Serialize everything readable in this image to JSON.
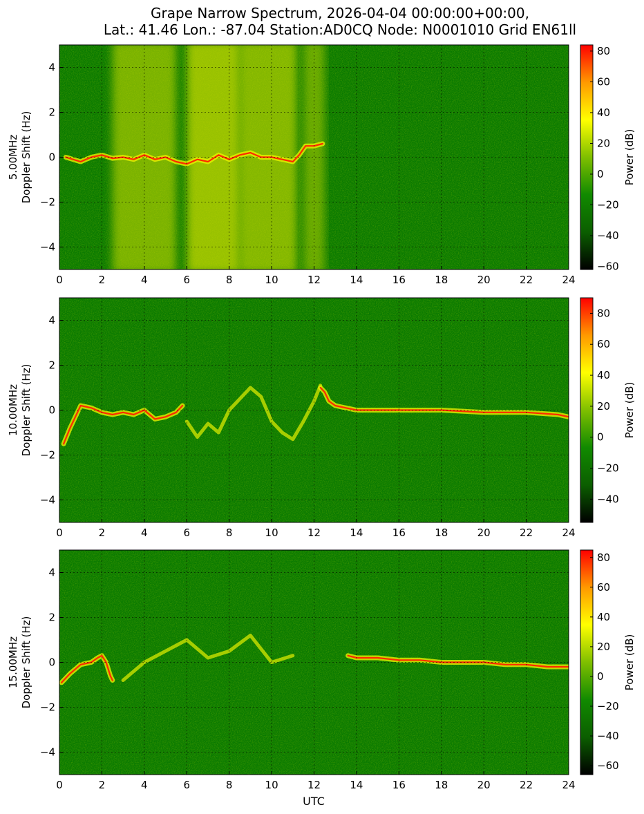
{
  "figure": {
    "title_line1": "Grape Narrow Spectrum, 2026-04-04 00:00:00+00:00,",
    "title_line2": "Lat.: 41.46 Lon.: -87.04 Station:AD0CQ Node: N0001010 Grid EN61ll",
    "xlabel": "UTC"
  },
  "colors": {
    "background_green": "#0a7a00",
    "grid": "#000000",
    "colormap": [
      "#000000",
      "#0b5e00",
      "#118a00",
      "#7fbf00",
      "#ffff00",
      "#ff9900",
      "#ff0000"
    ]
  },
  "chart_data": [
    {
      "type": "heatmap",
      "ylabel_top": "5.00MHz",
      "ylabel_bottom": "Doppler Shift (Hz)",
      "xlabel": "",
      "xlim": [
        0,
        24
      ],
      "ylim": [
        -5,
        5
      ],
      "xticks": [
        0,
        2,
        4,
        6,
        8,
        10,
        12,
        14,
        16,
        18,
        20,
        22,
        24
      ],
      "yticks": [
        -4,
        -2,
        0,
        2,
        4
      ],
      "grid": true,
      "colorbar": {
        "label": "Power (dB)",
        "range": [
          -62,
          84
        ],
        "ticks": [
          -60,
          -40,
          -20,
          0,
          20,
          40,
          60,
          80
        ]
      },
      "trace": {
        "x": [
          0.3,
          1.0,
          1.5,
          2.0,
          2.5,
          3.0,
          3.5,
          4.0,
          4.5,
          5.0,
          5.5,
          6.0,
          6.5,
          7.0,
          7.5,
          8.0,
          8.5,
          9.0,
          9.5,
          10.0,
          10.5,
          11.0,
          11.3,
          11.6,
          12.0,
          12.4
        ],
        "y": [
          0.0,
          -0.2,
          0.0,
          0.1,
          -0.05,
          0.0,
          -0.1,
          0.1,
          -0.1,
          0.0,
          -0.2,
          -0.3,
          -0.1,
          -0.2,
          0.1,
          -0.1,
          0.1,
          0.2,
          0.0,
          0.0,
          -0.1,
          -0.2,
          0.1,
          0.5,
          0.5,
          0.6
        ]
      },
      "bright_regions": [
        {
          "x_range": [
            2.5,
            5.5
          ],
          "level": 0.55
        },
        {
          "x_range": [
            6.0,
            8.5
          ],
          "level": 0.7
        },
        {
          "x_range": [
            8.5,
            11.2
          ],
          "level": 0.6
        },
        {
          "x_range": [
            11.5,
            12.5
          ],
          "level": 0.45
        }
      ]
    },
    {
      "type": "heatmap",
      "ylabel_top": "10.00MHz",
      "ylabel_bottom": "Doppler Shift (Hz)",
      "xlabel": "",
      "xlim": [
        0,
        24
      ],
      "ylim": [
        -5,
        5
      ],
      "xticks": [
        0,
        2,
        4,
        6,
        8,
        10,
        12,
        14,
        16,
        18,
        20,
        22,
        24
      ],
      "yticks": [
        -4,
        -2,
        0,
        2,
        4
      ],
      "grid": true,
      "colorbar": {
        "label": "Power (dB)",
        "range": [
          -55,
          90
        ],
        "ticks": [
          -40,
          -20,
          0,
          20,
          40,
          60,
          80
        ]
      },
      "trace": {
        "x": [
          0.2,
          0.5,
          1.0,
          1.5,
          2.0,
          2.5,
          3.0,
          3.5,
          4.0,
          4.5,
          5.0,
          5.5,
          5.8
        ],
        "y": [
          -1.5,
          -0.8,
          0.2,
          0.1,
          -0.1,
          -0.2,
          -0.1,
          -0.2,
          0.0,
          -0.4,
          -0.3,
          -0.1,
          0.2
        ]
      },
      "trace2": {
        "x": [
          12.3,
          12.5,
          12.7,
          13.0,
          13.5,
          14.0,
          16.0,
          18.0,
          20.0,
          22.0,
          23.5,
          24.0
        ],
        "y": [
          1.0,
          0.8,
          0.4,
          0.2,
          0.1,
          0.0,
          0.0,
          0.0,
          -0.1,
          -0.1,
          -0.2,
          -0.3
        ]
      },
      "faint_trace": {
        "x": [
          6.0,
          6.5,
          7.0,
          7.5,
          8.0,
          8.5,
          9.0,
          9.5,
          10.0,
          10.5,
          11.0,
          11.5,
          12.0,
          12.3
        ],
        "y": [
          -0.5,
          -1.2,
          -0.6,
          -1.0,
          0.0,
          0.5,
          1.0,
          0.6,
          -0.5,
          -1.0,
          -1.3,
          -0.5,
          0.4,
          1.1
        ]
      }
    },
    {
      "type": "heatmap",
      "ylabel_top": "15.00MHz",
      "ylabel_bottom": "Doppler Shift (Hz)",
      "xlabel": "UTC",
      "xlim": [
        0,
        24
      ],
      "ylim": [
        -5,
        5
      ],
      "xticks": [
        0,
        2,
        4,
        6,
        8,
        10,
        12,
        14,
        16,
        18,
        20,
        22,
        24
      ],
      "yticks": [
        -4,
        -2,
        0,
        2,
        4
      ],
      "grid": true,
      "colorbar": {
        "label": "Power (dB)",
        "range": [
          -66,
          85
        ],
        "ticks": [
          -60,
          -40,
          -20,
          0,
          20,
          40,
          60,
          80
        ]
      },
      "trace": {
        "x": [
          0.1,
          0.5,
          1.0,
          1.5,
          1.8,
          2.0,
          2.2,
          2.4,
          2.5
        ],
        "y": [
          -0.9,
          -0.5,
          -0.1,
          0.0,
          0.2,
          0.3,
          0.0,
          -0.6,
          -0.8
        ]
      },
      "trace2": {
        "x": [
          13.6,
          14.0,
          15.0,
          16.0,
          17.0,
          18.0,
          19.0,
          20.0,
          21.0,
          22.0,
          23.0,
          24.0
        ],
        "y": [
          0.3,
          0.2,
          0.2,
          0.1,
          0.1,
          0.0,
          0.0,
          0.0,
          -0.1,
          -0.1,
          -0.2,
          -0.2
        ]
      },
      "faint_trace": {
        "x": [
          3.0,
          4.0,
          5.0,
          6.0,
          7.0,
          8.0,
          9.0,
          9.5,
          10.0,
          11.0
        ],
        "y": [
          -0.8,
          0.0,
          0.5,
          1.0,
          0.2,
          0.5,
          1.2,
          0.6,
          0.0,
          0.3
        ]
      }
    }
  ]
}
